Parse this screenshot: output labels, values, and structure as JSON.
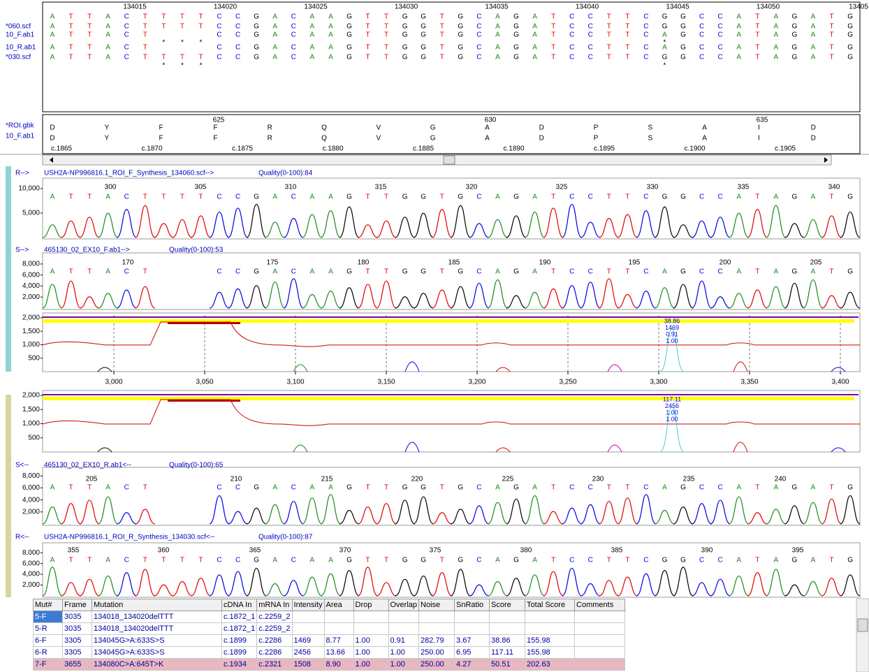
{
  "alignment": {
    "ruler": [
      "134015",
      "134020",
      "134025",
      "134030",
      "134035",
      "134040",
      "134045",
      "134050",
      "13405"
    ],
    "reference": [
      "A",
      "T",
      "T",
      "A",
      "C",
      "T",
      "T",
      "T",
      "T",
      "C",
      "C",
      "G",
      "A",
      "C",
      "A",
      "A",
      "G",
      "T",
      "T",
      "G",
      "G",
      "T",
      "G",
      "C",
      "A",
      "G",
      "A",
      "T",
      "C",
      "C",
      "T",
      "T",
      "C",
      "G",
      "G",
      "C",
      "C",
      "A",
      "T",
      "A",
      "G",
      "A",
      "T",
      "G"
    ],
    "rows": [
      {
        "label": "*060.scf",
        "bases": [
          "A",
          "T",
          "T",
          "A",
          "C",
          "T",
          "T",
          "T",
          "T",
          "C",
          "C",
          "G",
          "A",
          "C",
          "A",
          "A",
          "G",
          "T",
          "T",
          "G",
          "G",
          "T",
          "G",
          "C",
          "A",
          "G",
          "A",
          "T",
          "C",
          "C",
          "T",
          "T",
          "C",
          "G",
          "G",
          "C",
          "C",
          "A",
          "T",
          "A",
          "G",
          "A",
          "T",
          "G"
        ]
      },
      {
        "label": "10_F.ab1",
        "bases": [
          "A",
          "T",
          "T",
          "A",
          "C",
          "T",
          null,
          null,
          null,
          "C",
          "C",
          "G",
          "A",
          "C",
          "A",
          "A",
          "G",
          "T",
          "T",
          "G",
          "G",
          "T",
          "G",
          "C",
          "A",
          "G",
          "A",
          "T",
          "C",
          "C",
          "T",
          "T",
          "C",
          "A",
          "G",
          "C",
          "C",
          "A",
          "T",
          "A",
          "G",
          "A",
          "T",
          "G"
        ]
      },
      {
        "label": "10_R.ab1",
        "bases": [
          "A",
          "T",
          "T",
          "A",
          "C",
          "T",
          null,
          null,
          null,
          "C",
          "C",
          "G",
          "A",
          "C",
          "A",
          "A",
          "G",
          "T",
          "T",
          "G",
          "G",
          "T",
          "G",
          "C",
          "A",
          "G",
          "A",
          "T",
          "C",
          "C",
          "T",
          "T",
          "C",
          "A",
          "G",
          "C",
          "C",
          "A",
          "T",
          "A",
          "G",
          "A",
          "T",
          "G"
        ]
      },
      {
        "label": "*030.scf",
        "bases": [
          "A",
          "T",
          "T",
          "A",
          "C",
          "T",
          "T",
          "T",
          "T",
          "C",
          "C",
          "G",
          "A",
          "C",
          "A",
          "A",
          "G",
          "T",
          "T",
          "G",
          "G",
          "T",
          "G",
          "C",
          "A",
          "G",
          "A",
          "T",
          "C",
          "C",
          "T",
          "T",
          "C",
          "G",
          "G",
          "C",
          "C",
          "A",
          "T",
          "A",
          "G",
          "A",
          "T",
          "G"
        ]
      }
    ],
    "markers": [
      [
        null,
        null,
        null,
        null,
        null,
        null,
        "*",
        "*",
        "*",
        null,
        null,
        null,
        null,
        null,
        null,
        null,
        null,
        null,
        null,
        null,
        null,
        null,
        null,
        null,
        null,
        null,
        null,
        null,
        null,
        null,
        null,
        null,
        null,
        "*",
        null,
        null,
        null,
        null,
        null,
        null,
        null,
        null,
        null,
        null
      ],
      [
        null,
        null,
        null,
        null,
        null,
        null,
        "*",
        "*",
        "*",
        null,
        null,
        null,
        null,
        null,
        null,
        null,
        null,
        null,
        null,
        null,
        null,
        null,
        null,
        null,
        null,
        null,
        null,
        null,
        null,
        null,
        null,
        null,
        null,
        "*",
        null,
        null,
        null,
        null,
        null,
        null,
        null,
        null,
        null,
        null
      ]
    ]
  },
  "protein": {
    "labels": [
      "*ROI.gbk",
      "10_F.ab1"
    ],
    "ruler": [
      "625",
      "630",
      "635"
    ],
    "rows": [
      [
        "D",
        "Y",
        "F",
        "F",
        "R",
        "Q",
        "V",
        "G",
        "A",
        "D",
        "P",
        "S",
        "A",
        "I",
        "D"
      ],
      [
        "D",
        "Y",
        "F",
        "F",
        "R",
        "Q",
        "V",
        "G",
        "A",
        "D",
        "P",
        "S",
        "A",
        "I",
        "D"
      ]
    ],
    "cdna": [
      "c.1865",
      "c.1870",
      "c.1875",
      "c.1880",
      "c.1885",
      "c.1890",
      "c.1895",
      "c.1900",
      "c.1905"
    ]
  },
  "traces": [
    {
      "direction": "R-->",
      "file": "USH2A-NP996816.1_ROI_F_Synthesis_134060.scf-->",
      "quality": "Quality(0-100):84",
      "ylim": [
        0,
        11000
      ],
      "yticks": [
        {
          "value": 10000,
          "label": "10,000"
        },
        {
          "value": 5000,
          "label": "5,000"
        }
      ],
      "positions": [
        "300",
        "305",
        "310",
        "315",
        "320",
        "325",
        "330",
        "335",
        "340"
      ],
      "bases": [
        "A",
        "T",
        "T",
        "A",
        "C",
        "T",
        "T",
        "T",
        "T",
        "C",
        "C",
        "G",
        "A",
        "C",
        "A",
        "A",
        "G",
        "T",
        "T",
        "G",
        "G",
        "T",
        "G",
        "C",
        "A",
        "G",
        "A",
        "T",
        "C",
        "C",
        "T",
        "T",
        "C",
        "G",
        "G",
        "C",
        "C",
        "A",
        "T",
        "A",
        "G",
        "A",
        "T",
        "G"
      ]
    },
    {
      "direction": "S-->",
      "file": "465130_02_EX10_F.ab1-->",
      "quality": "Quality(0-100):53",
      "ylim": [
        0,
        9000
      ],
      "yticks": [
        {
          "value": 8000,
          "label": "8,000"
        },
        {
          "value": 6000,
          "label": "6,000"
        },
        {
          "value": 4000,
          "label": "4,000"
        },
        {
          "value": 2000,
          "label": "2,000"
        }
      ],
      "positions": [
        "170",
        "175",
        "180",
        "185",
        "190",
        "195",
        "200",
        "205"
      ],
      "bases": [
        "A",
        "T",
        "T",
        "A",
        "C",
        "T",
        null,
        null,
        null,
        "C",
        "C",
        "G",
        "A",
        "C",
        "A",
        "A",
        "G",
        "T",
        "T",
        "G",
        "G",
        "T",
        "G",
        "C",
        "A",
        "G",
        "A",
        "T",
        "C",
        "C",
        "T",
        "T",
        "C",
        "A",
        "G",
        "C",
        "C",
        "A",
        "T",
        "A",
        "G",
        "A",
        "T",
        "G"
      ]
    },
    {
      "direction": "S<--",
      "file": "465130_02_EX10_R.ab1<--",
      "quality": "Quality(0-100):65",
      "ylim": [
        0,
        8500
      ],
      "yticks": [
        {
          "value": 8000,
          "label": "8,000"
        },
        {
          "value": 6000,
          "label": "6,000"
        },
        {
          "value": 4000,
          "label": "4,000"
        },
        {
          "value": 2000,
          "label": "2,000"
        }
      ],
      "positions": [
        "205",
        "210",
        "215",
        "220",
        "225",
        "230",
        "235",
        "240"
      ],
      "bases": [
        "A",
        "T",
        "T",
        "A",
        "C",
        "T",
        null,
        null,
        null,
        "C",
        "C",
        "G",
        "A",
        "C",
        "A",
        "A",
        "G",
        "T",
        "T",
        "G",
        "G",
        "T",
        "G",
        "C",
        "A",
        "G",
        "A",
        "T",
        "C",
        "C",
        "T",
        "T",
        "C",
        "A",
        "G",
        "C",
        "C",
        "A",
        "T",
        "A",
        "G",
        "A",
        "T",
        "G"
      ]
    },
    {
      "direction": "R<--",
      "file": "USH2A-NP996816.1_ROI_R_Synthesis_134030.scf<--",
      "quality": "Quality(0-100):87",
      "ylim": [
        0,
        8800
      ],
      "yticks": [
        {
          "value": 8000,
          "label": "8,000"
        },
        {
          "value": 6000,
          "label": "6,000"
        },
        {
          "value": 4000,
          "label": "4,000"
        },
        {
          "value": 2000,
          "label": "2,000"
        }
      ],
      "positions": [
        "355",
        "360",
        "365",
        "370",
        "375",
        "380",
        "385",
        "390",
        "395"
      ],
      "bases": [
        "A",
        "T",
        "T",
        "A",
        "C",
        "T",
        "T",
        "T",
        "T",
        "C",
        "C",
        "G",
        "A",
        "C",
        "A",
        "A",
        "G",
        "T",
        "T",
        "G",
        "G",
        "T",
        "G",
        "C",
        "A",
        "G",
        "A",
        "T",
        "C",
        "C",
        "T",
        "T",
        "C",
        "G",
        "G",
        "C",
        "C",
        "A",
        "T",
        "A",
        "G",
        "A",
        "T",
        "G"
      ]
    }
  ],
  "mutation_plots": [
    {
      "ylim": [
        0,
        2100
      ],
      "yticks": [
        {
          "value": 2000,
          "label": "2,000"
        },
        {
          "value": 1500,
          "label": "1,500"
        },
        {
          "value": 1000,
          "label": "1,000"
        },
        {
          "value": 500,
          "label": "500"
        }
      ],
      "annotation": [
        "38.86",
        "1469",
        "0.91",
        "1.00"
      ]
    },
    {
      "ylim": [
        0,
        2100
      ],
      "yticks": [
        {
          "value": 2000,
          "label": "2,000"
        },
        {
          "value": 1500,
          "label": "1,500"
        },
        {
          "value": 1000,
          "label": "1,000"
        },
        {
          "value": 500,
          "label": "500"
        }
      ],
      "annotation": [
        "117.11",
        "2456",
        "1.00",
        "1.00"
      ]
    }
  ],
  "mutation_axis": {
    "xlim": [
      2960,
      3410
    ],
    "xticks": [
      {
        "value": 3000,
        "label": "3,000"
      },
      {
        "value": 3050,
        "label": "3,050"
      },
      {
        "value": 3100,
        "label": "3,100"
      },
      {
        "value": 3150,
        "label": "3,150"
      },
      {
        "value": 3200,
        "label": "3,200"
      },
      {
        "value": 3250,
        "label": "3,250"
      },
      {
        "value": 3300,
        "label": "3,300"
      },
      {
        "value": 3350,
        "label": "3,350"
      },
      {
        "value": 3400,
        "label": "3,400"
      }
    ]
  },
  "table": {
    "columns": [
      "Mut#",
      "Frame",
      "Mutation",
      "cDNA In",
      "mRNA In",
      "Intensity",
      "Area",
      "Drop",
      "Overlap",
      "Noise",
      "SnRatio",
      "Score",
      "Total Score",
      "Comments"
    ],
    "rows": [
      [
        "5-F",
        "3035",
        "134018_134020delTTT",
        "c.1872_1",
        "c.2259_2",
        null,
        null,
        null,
        null,
        null,
        null,
        null,
        null,
        null
      ],
      [
        "5-R",
        "3035",
        "134018_134020delTTT",
        "c.1872_1",
        "c.2259_2",
        null,
        null,
        null,
        null,
        null,
        null,
        null,
        null,
        null
      ],
      [
        "6-F",
        "3305",
        "134045G>A:633S>S",
        "c.1899",
        "c.2286",
        "1469",
        "8.77",
        "1.00",
        "0.91",
        "282.79",
        "3.67",
        "38.86",
        "155.98",
        null
      ],
      [
        "6-R",
        "3305",
        "134045G>A:633S>S",
        "c.1899",
        "c.2286",
        "2456",
        "13.66",
        "1.00",
        "1.00",
        "250.00",
        "6.95",
        "117.11",
        "155.98",
        null
      ],
      [
        "7-F",
        "3655",
        "134080C>A:645T>K",
        "c.1934",
        "c.2321",
        "1508",
        "8.90",
        "1.00",
        "1.00",
        "250.00",
        "4.27",
        "50.51",
        "202.63",
        null
      ]
    ]
  }
}
